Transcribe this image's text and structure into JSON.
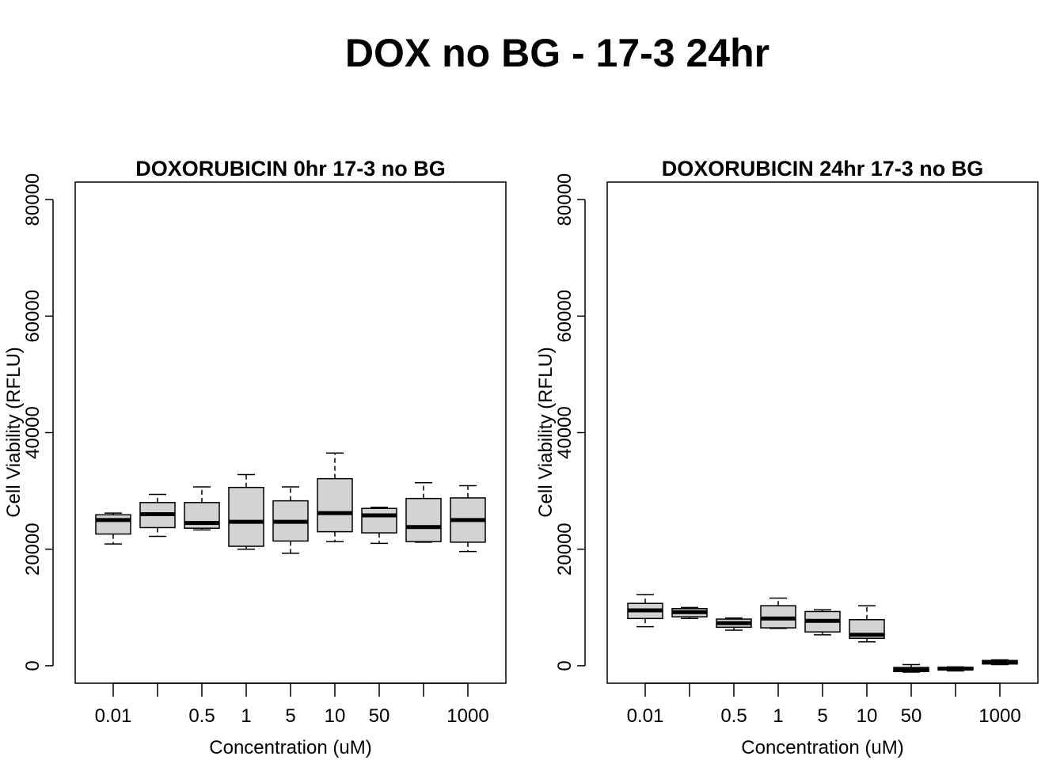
{
  "figure": {
    "title": "DOX no BG - 17-3 24hr"
  },
  "chart_data": [
    {
      "type": "boxplot",
      "title": "DOXORUBICIN 0hr 17-3 no BG",
      "xlabel": "Concentration (uM)",
      "ylabel": "Cell Viability (RFLU)",
      "ylim": [
        -3000,
        83000
      ],
      "yticks": [
        "0",
        "20000",
        "40000",
        "60000",
        "80000"
      ],
      "ytick_values": [
        0,
        20000,
        40000,
        60000,
        80000
      ],
      "categories": [
        "0.01",
        "",
        "0.5",
        "1",
        "5",
        "10",
        "50",
        "",
        "1000"
      ],
      "boxes": [
        {
          "min": 20900,
          "q1": 22600,
          "median": 25000,
          "q3": 25900,
          "max": 26200
        },
        {
          "min": 22200,
          "q1": 23700,
          "median": 26000,
          "q3": 28000,
          "max": 29400
        },
        {
          "min": 23300,
          "q1": 23600,
          "median": 24500,
          "q3": 28000,
          "max": 30700
        },
        {
          "min": 20000,
          "q1": 20500,
          "median": 24700,
          "q3": 30600,
          "max": 32800
        },
        {
          "min": 19300,
          "q1": 21400,
          "median": 24700,
          "q3": 28300,
          "max": 30700
        },
        {
          "min": 21300,
          "q1": 23000,
          "median": 26200,
          "q3": 32100,
          "max": 36500
        },
        {
          "min": 21000,
          "q1": 22800,
          "median": 25800,
          "q3": 27000,
          "max": 27200
        },
        {
          "min": 21200,
          "q1": 21300,
          "median": 23800,
          "q3": 28700,
          "max": 31400
        },
        {
          "min": 19600,
          "q1": 21200,
          "median": 25000,
          "q3": 28800,
          "max": 30900
        }
      ]
    },
    {
      "type": "boxplot",
      "title": "DOXORUBICIN 24hr 17-3 no BG",
      "xlabel": "Concentration (uM)",
      "ylabel": "Cell Viability (RFLU)",
      "ylim": [
        -3000,
        83000
      ],
      "yticks": [
        "0",
        "20000",
        "40000",
        "60000",
        "80000"
      ],
      "ytick_values": [
        0,
        20000,
        40000,
        60000,
        80000
      ],
      "categories": [
        "0.01",
        "",
        "0.5",
        "1",
        "5",
        "10",
        "50",
        "",
        "1000"
      ],
      "boxes": [
        {
          "min": 6700,
          "q1": 8100,
          "median": 9500,
          "q3": 10700,
          "max": 12200
        },
        {
          "min": 8100,
          "q1": 8400,
          "median": 9200,
          "q3": 9800,
          "max": 10000
        },
        {
          "min": 6100,
          "q1": 6600,
          "median": 7300,
          "q3": 8000,
          "max": 8200
        },
        {
          "min": 6400,
          "q1": 6500,
          "median": 8100,
          "q3": 10300,
          "max": 11600
        },
        {
          "min": 5300,
          "q1": 5800,
          "median": 7700,
          "q3": 9300,
          "max": 9600
        },
        {
          "min": 4100,
          "q1": 4700,
          "median": 5300,
          "q3": 7900,
          "max": 10300
        },
        {
          "min": -1100,
          "q1": -1000,
          "median": -700,
          "q3": -300,
          "max": 200
        },
        {
          "min": -900,
          "q1": -700,
          "median": -500,
          "q3": -300,
          "max": -200
        },
        {
          "min": 200,
          "q1": 300,
          "median": 600,
          "q3": 900,
          "max": 1000
        }
      ]
    }
  ]
}
